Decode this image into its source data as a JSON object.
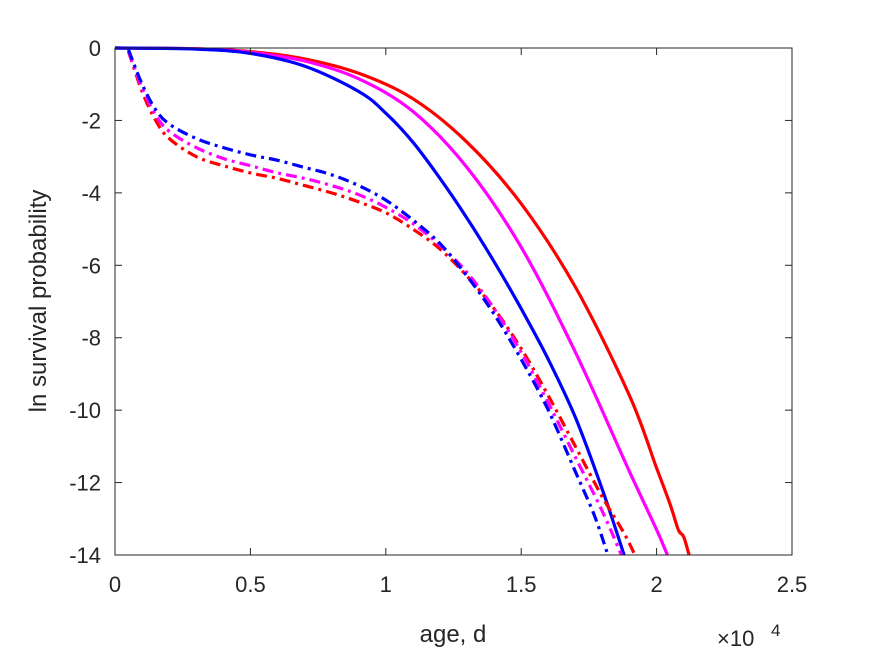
{
  "chart_data": {
    "type": "line",
    "title": "",
    "xlabel": "age, d",
    "ylabel": "ln survival probability",
    "x_exponent_label": "×10",
    "x_exponent_power": "4",
    "xlim": [
      0,
      25000
    ],
    "ylim": [
      -14,
      0
    ],
    "x_ticks": [
      0,
      5000,
      10000,
      15000,
      20000,
      25000
    ],
    "x_tick_labels": [
      "0",
      "0.5",
      "1",
      "1.5",
      "2",
      "2.5"
    ],
    "y_ticks": [
      0,
      -2,
      -4,
      -6,
      -8,
      -10,
      -12,
      -14
    ],
    "y_tick_labels": [
      "0",
      "-2",
      "-4",
      "-6",
      "-8",
      "-10",
      "-12",
      "-14"
    ],
    "grid": false,
    "legend": "none",
    "series": [
      {
        "color": "#ff0000",
        "style": "solid",
        "x": [
          0,
          3000,
          5000,
          7000,
          9000,
          11000,
          13000,
          15000,
          17000,
          19000,
          20000,
          20500,
          20800,
          21000,
          21200
        ],
        "y": [
          0,
          -0.02,
          -0.1,
          -0.3,
          -0.7,
          -1.4,
          -2.6,
          -4.3,
          -6.6,
          -9.6,
          -11.6,
          -12.6,
          -13.3,
          -13.5,
          -14.0
        ]
      },
      {
        "color": "#ff00ff",
        "style": "solid",
        "x": [
          0,
          3000,
          5000,
          7000,
          9000,
          11000,
          13000,
          15000,
          17000,
          19000,
          20000,
          20400
        ],
        "y": [
          0,
          -0.02,
          -0.12,
          -0.36,
          -0.85,
          -1.75,
          -3.3,
          -5.5,
          -8.4,
          -11.7,
          -13.3,
          -14.0
        ]
      },
      {
        "color": "#0000ff",
        "style": "solid",
        "x": [
          0,
          3000,
          5000,
          7000,
          9000,
          10000,
          11000,
          12000,
          13000,
          14000,
          15000,
          16000,
          17000,
          18000,
          18800
        ],
        "y": [
          0,
          -0.03,
          -0.15,
          -0.5,
          -1.2,
          -1.8,
          -2.6,
          -3.6,
          -4.7,
          -5.9,
          -7.2,
          -8.6,
          -10.2,
          -12.2,
          -14.0
        ]
      },
      {
        "color": "#ff0000",
        "style": "dashdot",
        "x": [
          500,
          1000,
          1500,
          2000,
          3000,
          4000,
          5000,
          6000,
          7000,
          8000,
          9000,
          10000,
          11000,
          12000,
          13000,
          14000,
          15000,
          16000,
          17000,
          18000,
          18800,
          19200
        ],
        "y": [
          -0.1,
          -1.2,
          -2.0,
          -2.5,
          -3.0,
          -3.25,
          -3.45,
          -3.6,
          -3.8,
          -4.0,
          -4.25,
          -4.55,
          -5.0,
          -5.55,
          -6.3,
          -7.2,
          -8.3,
          -9.6,
          -11.0,
          -12.4,
          -13.4,
          -14.0
        ]
      },
      {
        "color": "#ff00ff",
        "style": "dashdot",
        "x": [
          500,
          1000,
          1500,
          2000,
          3000,
          4000,
          5000,
          6000,
          7000,
          8000,
          9000,
          10000,
          11000,
          12000,
          13000,
          14000,
          15000,
          16000,
          17000,
          18000,
          18700
        ],
        "y": [
          -0.1,
          -1.1,
          -1.85,
          -2.3,
          -2.75,
          -3.05,
          -3.25,
          -3.45,
          -3.6,
          -3.8,
          -4.05,
          -4.4,
          -4.85,
          -5.45,
          -6.2,
          -7.2,
          -8.4,
          -9.8,
          -11.3,
          -12.8,
          -14.0
        ]
      },
      {
        "color": "#0000ff",
        "style": "dashdot",
        "x": [
          500,
          1000,
          1500,
          2000,
          3000,
          4000,
          5000,
          6000,
          7000,
          8000,
          9000,
          10000,
          11000,
          12000,
          13000,
          14000,
          15000,
          16000,
          17000,
          17700,
          18200
        ],
        "y": [
          -0.05,
          -1.0,
          -1.7,
          -2.1,
          -2.5,
          -2.75,
          -2.95,
          -3.1,
          -3.3,
          -3.5,
          -3.8,
          -4.2,
          -4.75,
          -5.4,
          -6.3,
          -7.35,
          -8.6,
          -10.0,
          -11.7,
          -12.9,
          -14.0
        ]
      }
    ]
  }
}
